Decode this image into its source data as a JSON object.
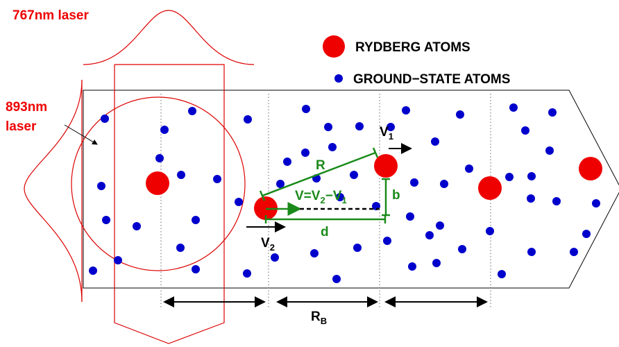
{
  "lasers": {
    "top": "767nm laser",
    "left": [
      "893nm",
      "laser"
    ]
  },
  "legend": {
    "rydberg": "RYDBERG ATOMS",
    "ground": "GROUND−STATE ATOMS"
  },
  "labels": {
    "R": "R",
    "b": "b",
    "d": "d",
    "v1": [
      "V",
      "1"
    ],
    "v2": [
      "V",
      "2"
    ],
    "relative": [
      "V=V",
      "2",
      "−V",
      "1"
    ],
    "rb": [
      "R",
      "B"
    ]
  }
}
